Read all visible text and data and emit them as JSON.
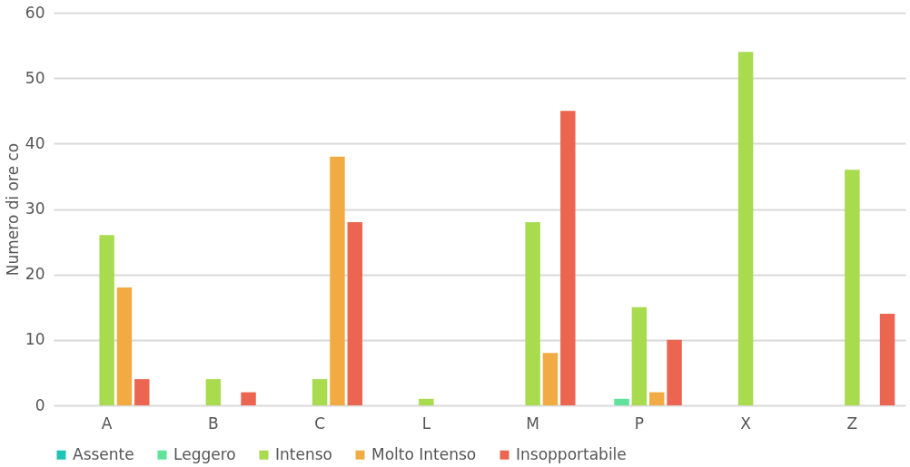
{
  "chart_data": {
    "type": "bar",
    "ylabel": "Numero di ore co",
    "categories": [
      "A",
      "B",
      "C",
      "L",
      "M",
      "P",
      "X",
      "Z"
    ],
    "series": [
      {
        "name": "Assente",
        "color": "#1ec4b6",
        "values": [
          0,
          0,
          0,
          0,
          0,
          0,
          0,
          0
        ]
      },
      {
        "name": "Leggero",
        "color": "#5fe39a",
        "values": [
          0,
          0,
          0,
          0,
          0,
          1,
          0,
          0
        ]
      },
      {
        "name": "Intenso",
        "color": "#a8db4e",
        "values": [
          26,
          4,
          4,
          1,
          28,
          15,
          54,
          36
        ]
      },
      {
        "name": "Molto Intenso",
        "color": "#f2ab42",
        "values": [
          18,
          0,
          38,
          0,
          8,
          2,
          0,
          0
        ]
      },
      {
        "name": "Insopportabile",
        "color": "#ec6550",
        "values": [
          4,
          2,
          28,
          0,
          45,
          10,
          0,
          14
        ]
      }
    ],
    "ylim": [
      0,
      60
    ],
    "yticks": [
      0,
      10,
      20,
      30,
      40,
      50,
      60
    ],
    "grid": "y",
    "legend": "bottom"
  }
}
